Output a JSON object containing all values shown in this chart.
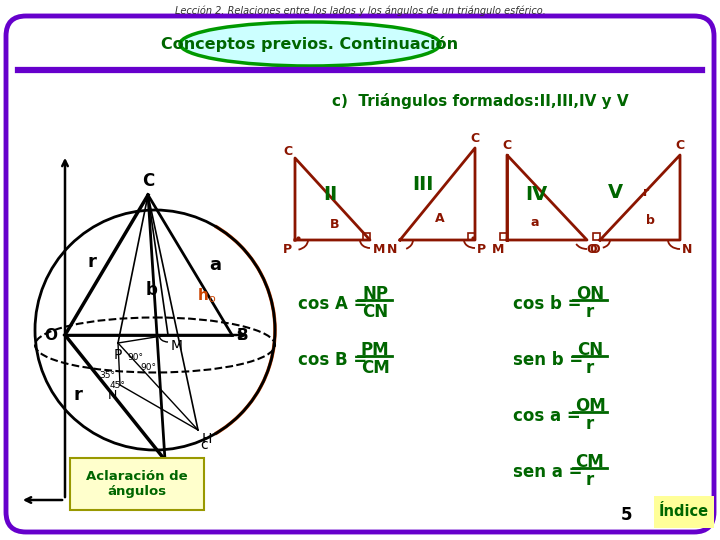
{
  "title_top": "Lección 2. Relaciones entre los lados y los ángulos de un triángulo esférico.",
  "header_text": "Conceptos previos. Continuación",
  "section_c": "c)  Triángulos formados:II,III,IV y V",
  "bg_color": "#ffffff",
  "border_color": "#6600cc",
  "header_fill": "#ccffff",
  "header_border": "#009900",
  "triangle_color": "#8B1500",
  "green_color": "#006600",
  "orange_color": "#cc4400",
  "formula_color": "#006600",
  "index_bg": "#ffff99",
  "page_num": "5",
  "aclaracion_text": "Aclaración de\nángulos"
}
